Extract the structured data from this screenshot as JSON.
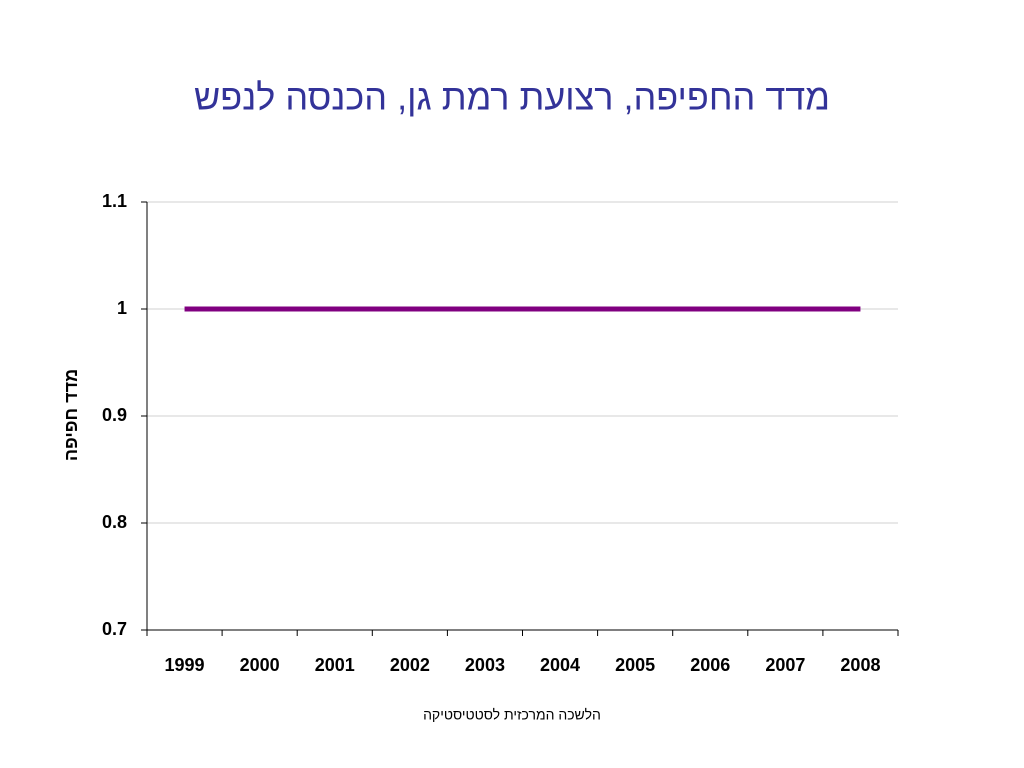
{
  "chart_data": {
    "type": "line",
    "title": "מדד החפיפה, רצועת רמת גן, הכנסה לנפש",
    "y_label": "מדד חפיפה",
    "footer": "הלשכה המרכזית לסטטיסטיקה",
    "categories": [
      "1999",
      "2000",
      "2001",
      "2002",
      "2003",
      "2004",
      "2005",
      "2006",
      "2007",
      "2008"
    ],
    "values": [
      1,
      1,
      1,
      1,
      1,
      1,
      1,
      1,
      1,
      1
    ],
    "color": "#800080",
    "ylim": [
      0.7,
      1.1
    ],
    "yticks": [
      0.7,
      0.8,
      0.9,
      1,
      1.1
    ],
    "grid": true
  }
}
